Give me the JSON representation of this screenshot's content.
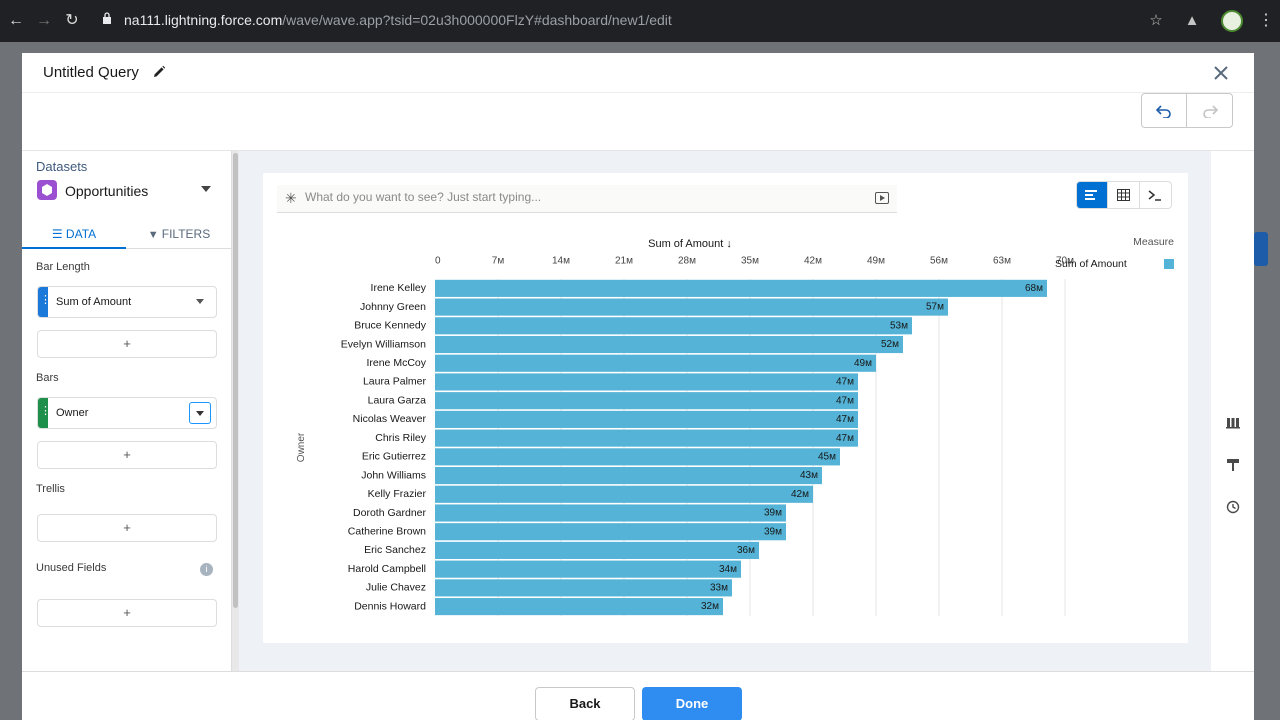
{
  "browser": {
    "url_host": "na111.lightning.force.com",
    "url_path": "/wave/wave.app?tsid=02u3h000000FlzY#dashboard/new1/edit"
  },
  "modal": {
    "title": "Untitled Query",
    "back_label": "Back",
    "done_label": "Done"
  },
  "left_panel": {
    "datasets_label": "Datasets",
    "dataset_name": "Opportunities",
    "tabs": [
      {
        "label": "DATA",
        "icon": "list-icon",
        "active": true
      },
      {
        "label": "FILTERS",
        "icon": "filter-icon",
        "active": false
      }
    ],
    "bar_length_label": "Bar Length",
    "bar_length_field": "Sum of Amount",
    "bars_label": "Bars",
    "bars_field": "Owner",
    "trellis_label": "Trellis",
    "unused_fields_label": "Unused Fields",
    "add_symbol": "+",
    "measure_color": "#1b7ad9",
    "dimension_color": "#1f8f4c"
  },
  "search": {
    "placeholder": "What do you want to see? Just start typing..."
  },
  "chart_data": {
    "type": "bar",
    "orientation": "horizontal",
    "title": "Sum of Amount ↓",
    "xlabel": "Sum of Amount ↓",
    "ylabel": "Owner",
    "legend_title": "Measure",
    "legend_placement": "top-right",
    "color": "#54b3d6",
    "x_ticks": [
      "0",
      "7м",
      "14м",
      "21м",
      "28м",
      "35м",
      "42м",
      "49м",
      "56м",
      "63м",
      "70м"
    ],
    "xlim": [
      0,
      70
    ],
    "categories": [
      "Irene Kelley",
      "Johnny Green",
      "Bruce Kennedy",
      "Evelyn Williamson",
      "Irene McCoy",
      "Laura Palmer",
      "Laura Garza",
      "Nicolas Weaver",
      "Chris Riley",
      "Eric Gutierrez",
      "John Williams",
      "Kelly Frazier",
      "Doroth Gardner",
      "Catherine Brown",
      "Eric Sanchez",
      "Harold Campbell",
      "Julie Chavez",
      "Dennis Howard"
    ],
    "series": [
      {
        "name": "Sum of Amount",
        "values": [
          68,
          57,
          53,
          52,
          49,
          47,
          47,
          47,
          47,
          45,
          43,
          42,
          39,
          39,
          36,
          34,
          33,
          32
        ],
        "labels": [
          "68м",
          "57м",
          "53м",
          "52м",
          "49м",
          "47м",
          "47м",
          "47м",
          "47м",
          "45м",
          "43м",
          "42м",
          "39м",
          "39м",
          "36м",
          "34м",
          "33м",
          "32м"
        ]
      }
    ]
  }
}
